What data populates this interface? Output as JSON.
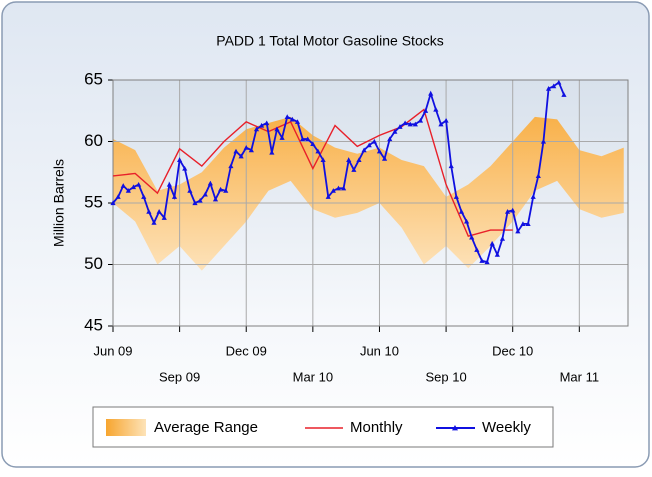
{
  "chart_data": {
    "type": "range-line",
    "title": "PADD 1 Total Motor Gasoline Stocks",
    "y_label": "Million Barrels",
    "xlim": [
      0,
      100.5
    ],
    "xticks": [
      {
        "value": 0,
        "label": "Jun 09"
      },
      {
        "value": 13,
        "label": "Sep 09"
      },
      {
        "value": 26,
        "label": "Dec 09"
      },
      {
        "value": 39,
        "label": "Mar 10"
      },
      {
        "value": 52,
        "label": "Jun 10"
      },
      {
        "value": 65,
        "label": "Sep 10"
      },
      {
        "value": 78,
        "label": "Dec 10"
      },
      {
        "value": 91,
        "label": "Mar 11"
      }
    ],
    "ylim": [
      45,
      65
    ],
    "yticks": [
      45,
      50,
      55,
      60,
      65
    ],
    "grid": true,
    "band": {
      "name": "Average Range",
      "color": "#f7a52f",
      "x": [
        0,
        4.33,
        8.67,
        13,
        17.33,
        21.67,
        26,
        30.33,
        34.67,
        39,
        43.33,
        47.67,
        52,
        56.33,
        60.67,
        65,
        69.33,
        73.67,
        78,
        82.33,
        86.67,
        91,
        95.33,
        99.67
      ],
      "upper": [
        60.2,
        59.3,
        56,
        56.5,
        57.5,
        59.5,
        61,
        61.5,
        62,
        60.5,
        59.5,
        59,
        59.5,
        58.5,
        58,
        55.5,
        56.5,
        58,
        60,
        62,
        61.8,
        59.3,
        58.8,
        59.5
      ],
      "lower": [
        55,
        53.5,
        50,
        51.5,
        49.5,
        51.5,
        53.5,
        56,
        56.8,
        54.5,
        53.8,
        54.2,
        55,
        53,
        50,
        51.5,
        49.7,
        51.5,
        53.5,
        56,
        56.8,
        54.5,
        53.8,
        54.2
      ]
    },
    "series": [
      {
        "name": "Monthly",
        "color": "#e8202a",
        "x": [
          0,
          4.33,
          8.67,
          13,
          17.33,
          21.67,
          26,
          30.33,
          34.67,
          39,
          43.33,
          47.67,
          52,
          56.33,
          60.67,
          65,
          69.33,
          73.67,
          78
        ],
        "values": [
          57.2,
          57.4,
          55.8,
          59.4,
          58,
          60,
          61.6,
          60.8,
          61.6,
          57.8,
          61.3,
          59.6,
          60.5,
          61.2,
          62.6,
          56.5,
          52.3,
          52.8,
          52.8
        ]
      },
      {
        "name": "Weekly",
        "color": "#1010e0",
        "x": [
          0,
          1,
          2,
          3,
          4,
          5,
          6,
          7,
          8,
          9,
          10,
          11,
          12,
          13,
          14,
          15,
          16,
          17,
          18,
          19,
          20,
          21,
          22,
          23,
          24,
          25,
          26,
          27,
          28,
          29,
          30,
          31,
          32,
          33,
          34,
          35,
          36,
          37,
          38,
          39,
          40,
          41,
          42,
          43,
          44,
          45,
          46,
          47,
          48,
          49,
          50,
          51,
          52,
          53,
          54,
          55,
          56,
          57,
          58,
          59,
          60,
          61,
          62,
          63,
          64,
          65,
          66,
          67,
          68,
          69,
          70,
          71,
          72,
          73,
          74,
          75,
          76,
          77,
          78,
          79,
          80,
          81,
          82,
          83,
          84,
          85,
          86,
          87,
          88
        ],
        "values": [
          55.0,
          55.5,
          56.4,
          56,
          56.3,
          56.5,
          55.5,
          54.3,
          53.4,
          54.3,
          53.8,
          56.5,
          55.5,
          58.5,
          57.8,
          56,
          55,
          55.2,
          55.7,
          56.6,
          55.3,
          56.1,
          56,
          58,
          59.2,
          58.8,
          59.5,
          59.3,
          61,
          61.3,
          61.5,
          59.1,
          61,
          60.3,
          62,
          61.8,
          61.6,
          60.2,
          60.2,
          59.8,
          59.2,
          58.5,
          55.5,
          56,
          56.2,
          56.2,
          58.5,
          57.7,
          58.5,
          59.3,
          59.7,
          60,
          59.2,
          58.6,
          60.2,
          60.8,
          61.2,
          61.5,
          61.4,
          61.4,
          61.7,
          62.5,
          63.9,
          62.6,
          61.4,
          61.7,
          58,
          55.5,
          54.3,
          53.5,
          52.2,
          51.2,
          50.3,
          50.2,
          51.7,
          50.8,
          52.1,
          54.3,
          54.4,
          52.7,
          53.3,
          53.3,
          55.5,
          57.2,
          60,
          64.3,
          64.5,
          64.8,
          63.8
        ]
      }
    ]
  }
}
